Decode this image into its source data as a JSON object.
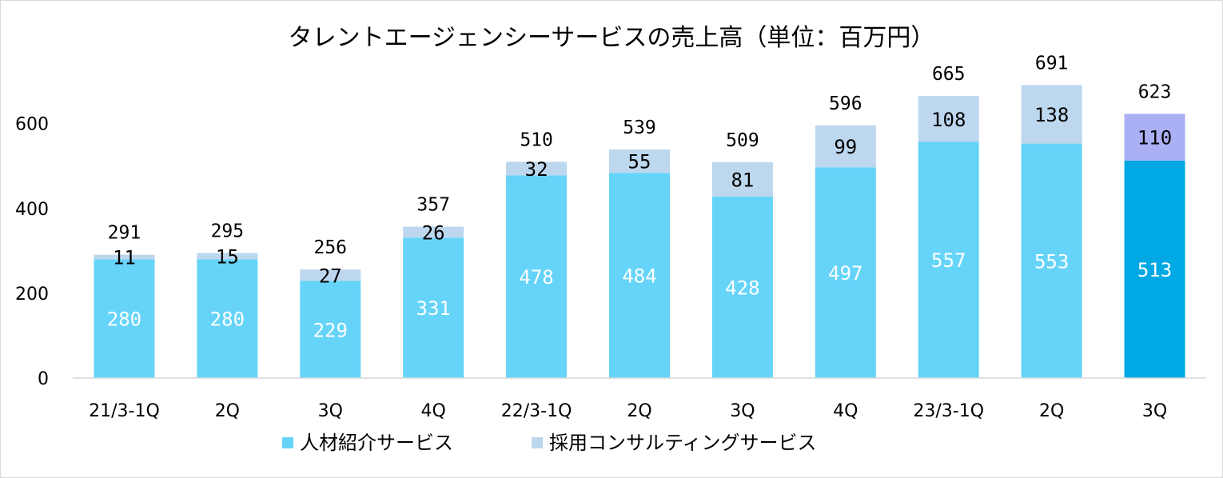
{
  "chart_data": {
    "type": "bar",
    "stacked": true,
    "title": "タレントエージェンシーサービスの売上高（単位：百万円）",
    "categories": [
      "21/3-1Q",
      "2Q",
      "3Q",
      "4Q",
      "22/3-1Q",
      "2Q",
      "3Q",
      "4Q",
      "23/3-1Q",
      "2Q",
      "3Q"
    ],
    "series": [
      {
        "name": "人材紹介サービス",
        "values": [
          280,
          280,
          229,
          331,
          478,
          484,
          428,
          497,
          557,
          553,
          513
        ],
        "color": "#66d4f9",
        "highlight_color": "#00a9e3",
        "label_color": "#ffffff"
      },
      {
        "name": "採用コンサルティングサービス",
        "values": [
          11,
          15,
          27,
          26,
          32,
          55,
          81,
          99,
          108,
          138,
          110
        ],
        "color": "#bdd7ee",
        "highlight_color": "#abb0f5",
        "label_color": "#000000"
      }
    ],
    "totals": [
      291,
      295,
      256,
      357,
      510,
      539,
      509,
      596,
      665,
      691,
      623
    ],
    "highlight_index": 10,
    "yticks": [
      0,
      200,
      400,
      600
    ],
    "ylim": [
      0,
      720
    ],
    "xlabel": "",
    "ylabel": "",
    "grid": false,
    "legend_position": "bottom"
  }
}
